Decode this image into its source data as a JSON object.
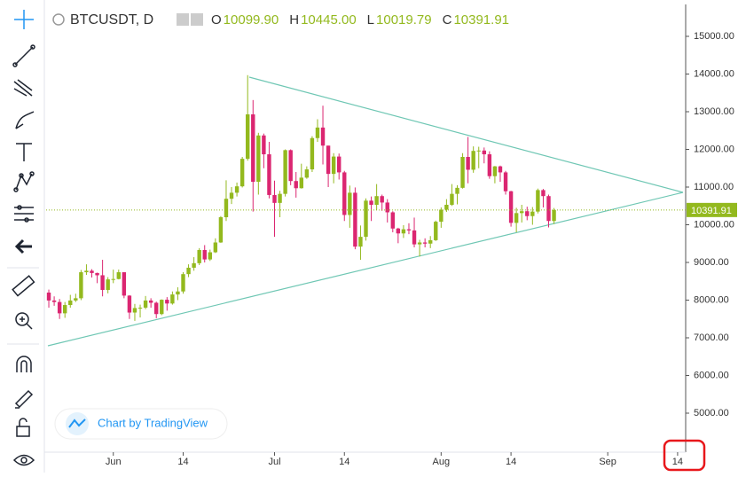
{
  "header": {
    "symbol": "BTCUSDT, D",
    "fields": [
      {
        "key": "O",
        "value": "10099.90"
      },
      {
        "key": "H",
        "value": "10445.00"
      },
      {
        "key": "L",
        "value": "10019.79"
      },
      {
        "key": "C",
        "value": "10391.91"
      }
    ]
  },
  "watermark": "Chart by TradingView",
  "chart_data": {
    "type": "candlestick",
    "open": [
      8200,
      7990,
      7950,
      7650,
      7870,
      7990,
      8050,
      8740,
      8780,
      8720,
      8660,
      8270,
      8550,
      8560,
      8740,
      8120,
      7670,
      7790,
      7800,
      7990,
      7930,
      7630,
      8010,
      7910,
      8150,
      8230,
      8690,
      8860,
      8980,
      9330,
      9080,
      9270,
      9530,
      10200,
      10690,
      10850,
      11020,
      11750,
      12930,
      11140,
      12370,
      11870,
      10790,
      10580,
      10820,
      11980,
      11160,
      10970,
      11250,
      11470,
      12300,
      12580,
      12100,
      11350,
      11810,
      11390,
      10260,
      10850,
      9420,
      9680,
      10640,
      10530,
      10760,
      10590,
      10330,
      9900,
      9770,
      9880,
      9850,
      9480,
      9530,
      9500,
      9590,
      10080,
      10400,
      10530,
      10820,
      10980,
      11800,
      11460,
      11960,
      11970,
      11870,
      11290,
      11550,
      11390,
      10890,
      10050,
      10310,
      10360,
      10230,
      10350,
      10920,
      10760,
      10099.9
    ],
    "high": [
      8280,
      8100,
      8030,
      7950,
      8140,
      8170,
      8800,
      8950,
      8820,
      8730,
      9070,
      8610,
      8810,
      8810,
      8740,
      8130,
      7900,
      7880,
      8110,
      8050,
      7960,
      8020,
      8080,
      8230,
      8340,
      8740,
      8950,
      9140,
      9380,
      9460,
      9340,
      9640,
      10230,
      11180,
      11000,
      11120,
      11800,
      13970,
      13310,
      12440,
      12420,
      12200,
      11170,
      10900,
      12000,
      12000,
      11400,
      11620,
      11550,
      12350,
      12800,
      13160,
      12100,
      11900,
      11890,
      11430,
      11040,
      10990,
      9980,
      10700,
      10750,
      11080,
      10800,
      10680,
      10360,
      9920,
      9990,
      10040,
      10190,
      9600,
      9640,
      9700,
      10110,
      10460,
      10680,
      11080,
      11050,
      11900,
      12330,
      12080,
      12070,
      12050,
      11950,
      11560,
      11570,
      11430,
      10900,
      10450,
      10530,
      10480,
      10470,
      10960,
      10950,
      10800,
      10445
    ],
    "low": [
      7800,
      7850,
      7500,
      7530,
      7800,
      7950,
      8000,
      8670,
      8600,
      8450,
      8100,
      8180,
      8450,
      8550,
      8050,
      7500,
      7450,
      7540,
      7760,
      7800,
      7520,
      7600,
      7720,
      7880,
      8000,
      8170,
      8610,
      8780,
      8930,
      9000,
      9040,
      9250,
      9520,
      10100,
      10550,
      10750,
      10990,
      11700,
      10350,
      10800,
      11500,
      10700,
      9680,
      10200,
      10750,
      11050,
      10720,
      10960,
      11220,
      11400,
      12200,
      11600,
      11000,
      11100,
      11200,
      10100,
      9920,
      9350,
      9070,
      9580,
      10100,
      10400,
      10370,
      10060,
      9800,
      9510,
      9650,
      9750,
      9400,
      9160,
      9400,
      9380,
      9570,
      9920,
      10340,
      10500,
      10540,
      10960,
      11100,
      11380,
      11500,
      11630,
      11220,
      11100,
      11140,
      10800,
      9950,
      9800,
      10060,
      10120,
      10000,
      10300,
      10460,
      9930,
      10019.79
    ],
    "close": [
      7990,
      7950,
      7650,
      7870,
      7990,
      8050,
      8740,
      8780,
      8720,
      8660,
      8270,
      8550,
      8560,
      8740,
      8120,
      7670,
      7790,
      7800,
      7990,
      7930,
      7630,
      8010,
      7910,
      8150,
      8230,
      8690,
      8860,
      8980,
      9330,
      9080,
      9270,
      9530,
      10200,
      10690,
      10850,
      11020,
      11750,
      12930,
      11140,
      12370,
      11870,
      10790,
      10580,
      10820,
      11980,
      11160,
      10970,
      11250,
      11470,
      12300,
      12580,
      12100,
      11350,
      11810,
      11390,
      10260,
      10850,
      9420,
      9680,
      10640,
      10530,
      10760,
      10590,
      10330,
      9900,
      9770,
      9880,
      9850,
      9480,
      9530,
      9500,
      9590,
      10080,
      10400,
      10530,
      10820,
      10980,
      11800,
      11460,
      11960,
      11970,
      11870,
      11290,
      11550,
      11390,
      10890,
      10050,
      10310,
      10360,
      10230,
      10350,
      10920,
      10760,
      10100,
      10391.91
    ],
    "up_color": "#93b91e",
    "down_color": "#db2671",
    "ylim": [
      3965,
      15847
    ],
    "yticks": [
      {
        "value": 5000,
        "label": "5000.00"
      },
      {
        "value": 6000,
        "label": "6000.00"
      },
      {
        "value": 7000,
        "label": "7000.00"
      },
      {
        "value": 8000,
        "label": "8000.00"
      },
      {
        "value": 9000,
        "label": "9000.00"
      },
      {
        "value": 10000,
        "label": "10000.00"
      },
      {
        "value": 11000,
        "label": "11000.00"
      },
      {
        "value": 12000,
        "label": "12000.00"
      },
      {
        "value": 13000,
        "label": "13000.00"
      },
      {
        "value": 14000,
        "label": "14000.00"
      },
      {
        "value": 15000,
        "label": "15000.00"
      }
    ],
    "xlim": [
      -0.5,
      118.5
    ],
    "xticks": [
      {
        "value": 12,
        "label": "Jun"
      },
      {
        "value": 25,
        "label": "14"
      },
      {
        "value": 42,
        "label": "Jul"
      },
      {
        "value": 55,
        "label": "14"
      },
      {
        "value": 73,
        "label": "Aug"
      },
      {
        "value": 86,
        "label": "14"
      },
      {
        "value": 104,
        "label": "Sep"
      },
      {
        "value": 117,
        "label": "14"
      }
    ]
  }
}
